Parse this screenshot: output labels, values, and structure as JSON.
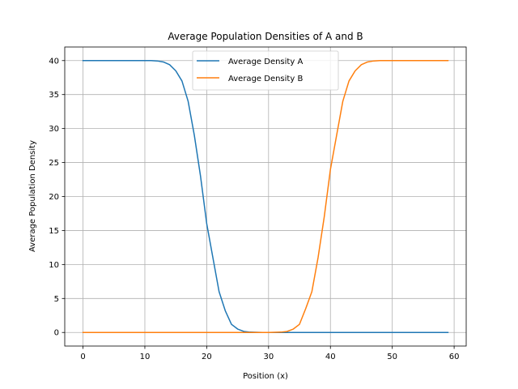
{
  "chart_data": {
    "type": "line",
    "title": "Average Population Densities of A and B",
    "xlabel": "Position (x)",
    "ylabel": "Average Population Density",
    "xlim": [
      -2.95,
      61.95
    ],
    "ylim": [
      -2.0,
      42.0
    ],
    "xticks": [
      0,
      10,
      20,
      30,
      40,
      50,
      60
    ],
    "yticks": [
      0,
      5,
      10,
      15,
      20,
      25,
      30,
      35,
      40
    ],
    "grid": true,
    "legend_position": "upper center",
    "x": [
      0,
      1,
      2,
      3,
      4,
      5,
      6,
      7,
      8,
      9,
      10,
      11,
      12,
      13,
      14,
      15,
      16,
      17,
      18,
      19,
      20,
      21,
      22,
      23,
      24,
      25,
      26,
      27,
      28,
      29,
      30,
      31,
      32,
      33,
      34,
      35,
      36,
      37,
      38,
      39,
      40,
      41,
      42,
      43,
      44,
      45,
      46,
      47,
      48,
      49,
      50,
      51,
      52,
      53,
      54,
      55,
      56,
      57,
      58,
      59
    ],
    "series": [
      {
        "name": "Average Density A",
        "color": "#1f77b4",
        "values": [
          40,
          40,
          40,
          40,
          40,
          40,
          40,
          40,
          40,
          40,
          40,
          40,
          39.95,
          39.8,
          39.4,
          38.5,
          37,
          34,
          29,
          23,
          16,
          11,
          6,
          3.2,
          1.2,
          0.5,
          0.15,
          0.05,
          0.02,
          0,
          0,
          0,
          0,
          0,
          0,
          0,
          0,
          0,
          0,
          0,
          0,
          0,
          0,
          0,
          0,
          0,
          0,
          0,
          0,
          0,
          0,
          0,
          0,
          0,
          0,
          0,
          0,
          0,
          0,
          0
        ]
      },
      {
        "name": "Average Density B",
        "color": "#ff7f0e",
        "values": [
          0,
          0,
          0,
          0,
          0,
          0,
          0,
          0,
          0,
          0,
          0,
          0,
          0,
          0,
          0,
          0,
          0,
          0,
          0,
          0,
          0,
          0,
          0,
          0,
          0,
          0,
          0,
          0,
          0,
          0,
          0,
          0.02,
          0.05,
          0.15,
          0.5,
          1.2,
          3.5,
          6,
          11,
          17,
          24,
          29,
          34,
          37,
          38.5,
          39.4,
          39.8,
          39.95,
          40,
          40,
          40,
          40,
          40,
          40,
          40,
          40,
          40,
          40,
          40,
          40
        ]
      }
    ]
  }
}
